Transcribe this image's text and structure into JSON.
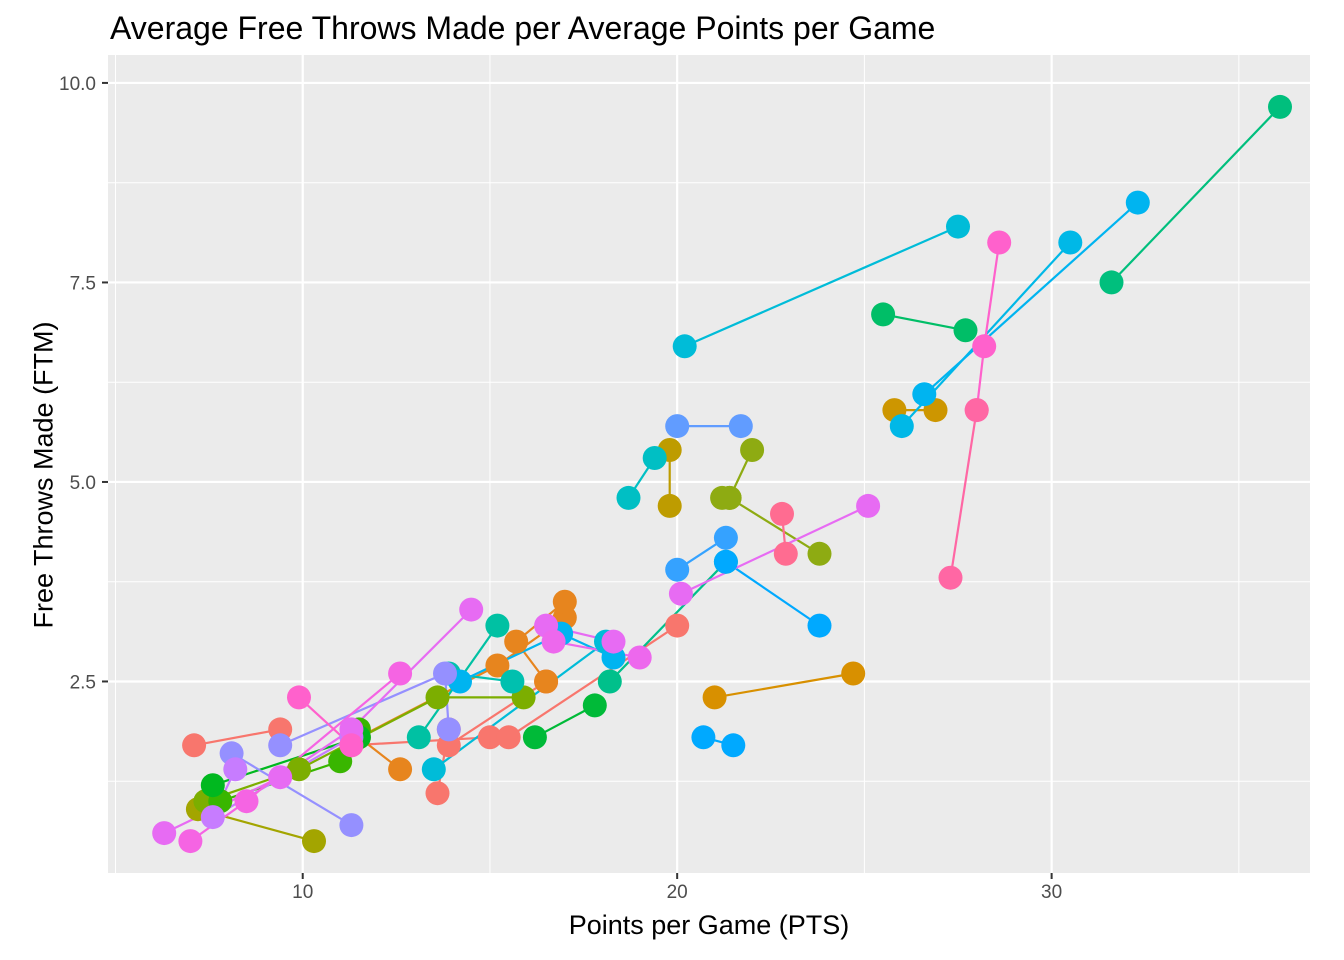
{
  "chart_data": {
    "type": "scatter",
    "title": "Average Free Throws Made per Average Points per Game",
    "xlabel": "Points per Game (PTS)",
    "ylabel": "Free Throws Made (FTM)",
    "xlim": [
      4.8,
      36.9
    ],
    "ylim": [
      0.1,
      10.35
    ],
    "xticks": [
      10,
      20,
      30
    ],
    "yticks": [
      2.5,
      5.0,
      7.5,
      10.0
    ],
    "ytick_labels": [
      "2.5",
      "5.0",
      "7.5",
      "10.0"
    ],
    "grid": true,
    "legend": "none",
    "background": "#EBEBEB",
    "series": [
      {
        "color": "#F8766D",
        "points": [
          [
            7.1,
            1.7
          ],
          [
            9.4,
            1.9
          ]
        ]
      },
      {
        "color": "#F8766D",
        "points": [
          [
            13.6,
            1.1
          ],
          [
            13.9,
            1.9
          ],
          [
            13.9,
            1.7
          ],
          [
            16.5,
            2.5
          ]
        ]
      },
      {
        "color": "#F8766D",
        "points": [
          [
            11.3,
            1.7
          ],
          [
            15.0,
            1.8
          ],
          [
            15.5,
            1.8
          ],
          [
            20.0,
            3.2
          ]
        ]
      },
      {
        "color": "#E7851E",
        "points": [
          [
            12.6,
            1.4
          ],
          [
            11.5,
            1.8
          ],
          [
            15.2,
            2.7
          ],
          [
            17.0,
            3.3
          ]
        ]
      },
      {
        "color": "#E7851E",
        "points": [
          [
            16.5,
            2.5
          ],
          [
            15.7,
            3.0
          ],
          [
            17.0,
            3.5
          ]
        ]
      },
      {
        "color": "#D89000",
        "points": [
          [
            21.0,
            2.3
          ],
          [
            24.7,
            2.6
          ]
        ]
      },
      {
        "color": "#CD9600",
        "points": [
          [
            25.8,
            5.9
          ],
          [
            26.9,
            5.9
          ]
        ]
      },
      {
        "color": "#BE9C00",
        "points": [
          [
            19.8,
            5.4
          ],
          [
            19.8,
            4.7
          ]
        ]
      },
      {
        "color": "#A3A500",
        "points": [
          [
            7.2,
            0.9
          ],
          [
            10.3,
            0.5
          ]
        ]
      },
      {
        "color": "#8EAB12",
        "points": [
          [
            21.2,
            4.8
          ],
          [
            21.4,
            4.8
          ],
          [
            22.0,
            5.4
          ]
        ]
      },
      {
        "color": "#8EAB12",
        "points": [
          [
            21.4,
            4.8
          ],
          [
            23.8,
            4.1
          ]
        ]
      },
      {
        "color": "#7CAE00",
        "points": [
          [
            7.4,
            1.0
          ],
          [
            9.9,
            1.4
          ],
          [
            13.6,
            2.3
          ],
          [
            15.9,
            2.3
          ]
        ]
      },
      {
        "color": "#39B600",
        "points": [
          [
            7.8,
            1.0
          ],
          [
            11.0,
            1.5
          ],
          [
            11.5,
            1.9
          ]
        ]
      },
      {
        "color": "#00BA38",
        "points": [
          [
            16.2,
            1.8
          ],
          [
            17.8,
            2.2
          ]
        ]
      },
      {
        "color": "#00B81F",
        "points": [
          [
            7.6,
            1.2
          ],
          [
            11.5,
            1.8
          ]
        ]
      },
      {
        "color": "#00BE67",
        "points": [
          [
            25.5,
            7.1
          ],
          [
            27.7,
            6.9
          ]
        ]
      },
      {
        "color": "#00BF7D",
        "points": [
          [
            31.6,
            7.5
          ],
          [
            36.1,
            9.7
          ]
        ]
      },
      {
        "color": "#00C08B",
        "points": [
          [
            18.2,
            2.5
          ],
          [
            21.3,
            4.0
          ]
        ]
      },
      {
        "color": "#00C1A3",
        "points": [
          [
            13.1,
            1.8
          ],
          [
            15.2,
            3.2
          ]
        ]
      },
      {
        "color": "#00C0AF",
        "points": [
          [
            15.6,
            2.5
          ],
          [
            13.9,
            2.6
          ]
        ]
      },
      {
        "color": "#00BFC4",
        "points": [
          [
            18.7,
            4.8
          ],
          [
            19.4,
            5.3
          ]
        ]
      },
      {
        "color": "#00BCD8",
        "points": [
          [
            13.5,
            1.4
          ],
          [
            18.1,
            3.0
          ]
        ]
      },
      {
        "color": "#00BCD8",
        "points": [
          [
            20.2,
            6.7
          ],
          [
            27.5,
            8.2
          ]
        ]
      },
      {
        "color": "#00B8E7",
        "points": [
          [
            26.0,
            5.7
          ],
          [
            30.5,
            8.0
          ]
        ]
      },
      {
        "color": "#00B4F0",
        "points": [
          [
            26.6,
            6.1
          ],
          [
            32.3,
            8.5
          ]
        ]
      },
      {
        "color": "#00B4F0",
        "points": [
          [
            14.2,
            2.5
          ],
          [
            16.9,
            3.1
          ],
          [
            18.3,
            2.8
          ]
        ]
      },
      {
        "color": "#00A9FF",
        "points": [
          [
            20.7,
            1.8
          ],
          [
            21.5,
            1.7
          ]
        ]
      },
      {
        "color": "#00A9FF",
        "points": [
          [
            21.3,
            4.0
          ],
          [
            23.8,
            3.2
          ]
        ]
      },
      {
        "color": "#35A2FF",
        "points": [
          [
            20.0,
            3.9
          ],
          [
            21.3,
            4.3
          ]
        ]
      },
      {
        "color": "#619CFF",
        "points": [
          [
            20.0,
            5.7
          ],
          [
            21.7,
            5.7
          ]
        ]
      },
      {
        "color": "#9590FF",
        "points": [
          [
            8.1,
            1.6
          ],
          [
            11.3,
            0.7
          ]
        ]
      },
      {
        "color": "#9590FF",
        "points": [
          [
            9.4,
            1.7
          ],
          [
            13.8,
            2.6
          ],
          [
            13.9,
            1.9
          ]
        ]
      },
      {
        "color": "#C77CFF",
        "points": [
          [
            8.2,
            1.4
          ],
          [
            7.6,
            0.8
          ],
          [
            11.3,
            1.8
          ]
        ]
      },
      {
        "color": "#E76BF3",
        "points": [
          [
            20.1,
            3.6
          ],
          [
            25.1,
            4.7
          ]
        ]
      },
      {
        "color": "#E76BF3",
        "points": [
          [
            16.5,
            3.2
          ],
          [
            18.3,
            3.0
          ]
        ]
      },
      {
        "color": "#E76BF3",
        "points": [
          [
            6.3,
            0.6
          ],
          [
            9.4,
            1.3
          ],
          [
            11.3,
            1.9
          ],
          [
            14.5,
            3.4
          ]
        ]
      },
      {
        "color": "#ED68ED",
        "points": [
          [
            16.7,
            3.0
          ],
          [
            19.0,
            2.8
          ]
        ]
      },
      {
        "color": "#F564E3",
        "points": [
          [
            7.0,
            0.5
          ],
          [
            8.5,
            1.0
          ],
          [
            12.6,
            2.6
          ]
        ]
      },
      {
        "color": "#FF61CC",
        "points": [
          [
            9.9,
            2.3
          ],
          [
            11.3,
            1.7
          ]
        ]
      },
      {
        "color": "#FF61CC",
        "points": [
          [
            28.0,
            5.9
          ],
          [
            28.2,
            6.7
          ],
          [
            28.6,
            8.0
          ]
        ]
      },
      {
        "color": "#FF67A4",
        "points": [
          [
            27.3,
            3.8
          ],
          [
            28.0,
            5.9
          ]
        ]
      },
      {
        "color": "#FF6C91",
        "points": [
          [
            22.8,
            4.6
          ],
          [
            22.9,
            4.1
          ]
        ]
      }
    ]
  }
}
